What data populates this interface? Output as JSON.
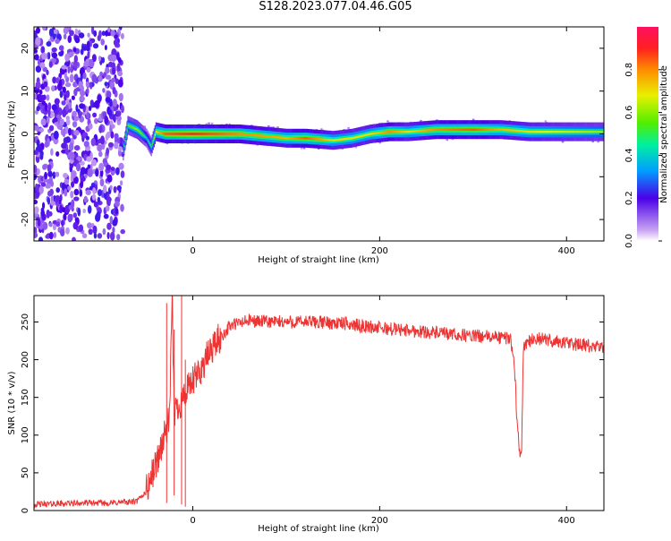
{
  "figure_title": "S128.2023.077.04.46.G05",
  "chart_data": [
    {
      "type": "heatmap",
      "xlabel": "Height of straight line (km)",
      "ylabel": "Frequency (Hz)",
      "xlim": [
        -170,
        440
      ],
      "ylim": [
        -25,
        25
      ],
      "xticks": [
        0,
        200,
        400
      ],
      "yticks": [
        -20,
        -10,
        0,
        10,
        20
      ],
      "colorbar": {
        "label": "Normalized spectral amplitude",
        "range": [
          0,
          1
        ],
        "ticks": [
          0.0,
          0.2,
          0.4,
          0.6,
          0.8
        ]
      },
      "noise_region_x": [
        -170,
        -75
      ],
      "ridge": {
        "x": [
          -75,
          -70,
          -60,
          -55,
          -50,
          -45,
          -40,
          -30,
          0,
          50,
          100,
          120,
          150,
          170,
          190,
          210,
          230,
          260,
          300,
          330,
          360,
          400,
          440
        ],
        "frequency": [
          -4,
          2,
          1,
          0,
          -1,
          -3,
          0.5,
          0,
          0,
          0,
          -1,
          -1,
          -1.5,
          -1,
          0,
          0.5,
          0.5,
          1,
          1,
          1,
          0.5,
          0.5,
          0.5
        ],
        "amplitude": [
          0.45,
          0.55,
          0.6,
          0.55,
          0.4,
          0.5,
          0.7,
          0.85,
          0.9,
          0.8,
          0.75,
          0.85,
          0.7,
          0.7,
          0.7,
          0.8,
          0.7,
          0.8,
          0.85,
          0.75,
          0.7,
          0.65,
          0.6
        ]
      }
    },
    {
      "type": "line",
      "xlabel": "Height of straight line (km)",
      "ylabel": "SNR (10 * v/v)",
      "xlim": [
        -170,
        440
      ],
      "ylim": [
        0,
        285
      ],
      "xticks": [
        0,
        200,
        400
      ],
      "yticks": [
        0,
        50,
        100,
        150,
        200,
        250
      ],
      "color": "#ee3333",
      "series": [
        {
          "x": [
            -170,
            -150,
            -120,
            -90,
            -60,
            -50,
            -40,
            -35,
            -30,
            -25,
            -22,
            -20,
            -15,
            -10,
            -5,
            0,
            10,
            20,
            30,
            40,
            60,
            80,
            100,
            130,
            160,
            200,
            240,
            280,
            320,
            340,
            344,
            347,
            350,
            352,
            354,
            358,
            370,
            400,
            440
          ],
          "y": [
            8,
            9,
            10,
            10,
            12,
            25,
            60,
            80,
            100,
            120,
            280,
            130,
            140,
            150,
            160,
            170,
            190,
            215,
            230,
            245,
            252,
            250,
            250,
            250,
            248,
            242,
            238,
            233,
            230,
            228,
            200,
            120,
            70,
            90,
            218,
            225,
            228,
            222,
            215
          ]
        }
      ]
    }
  ]
}
